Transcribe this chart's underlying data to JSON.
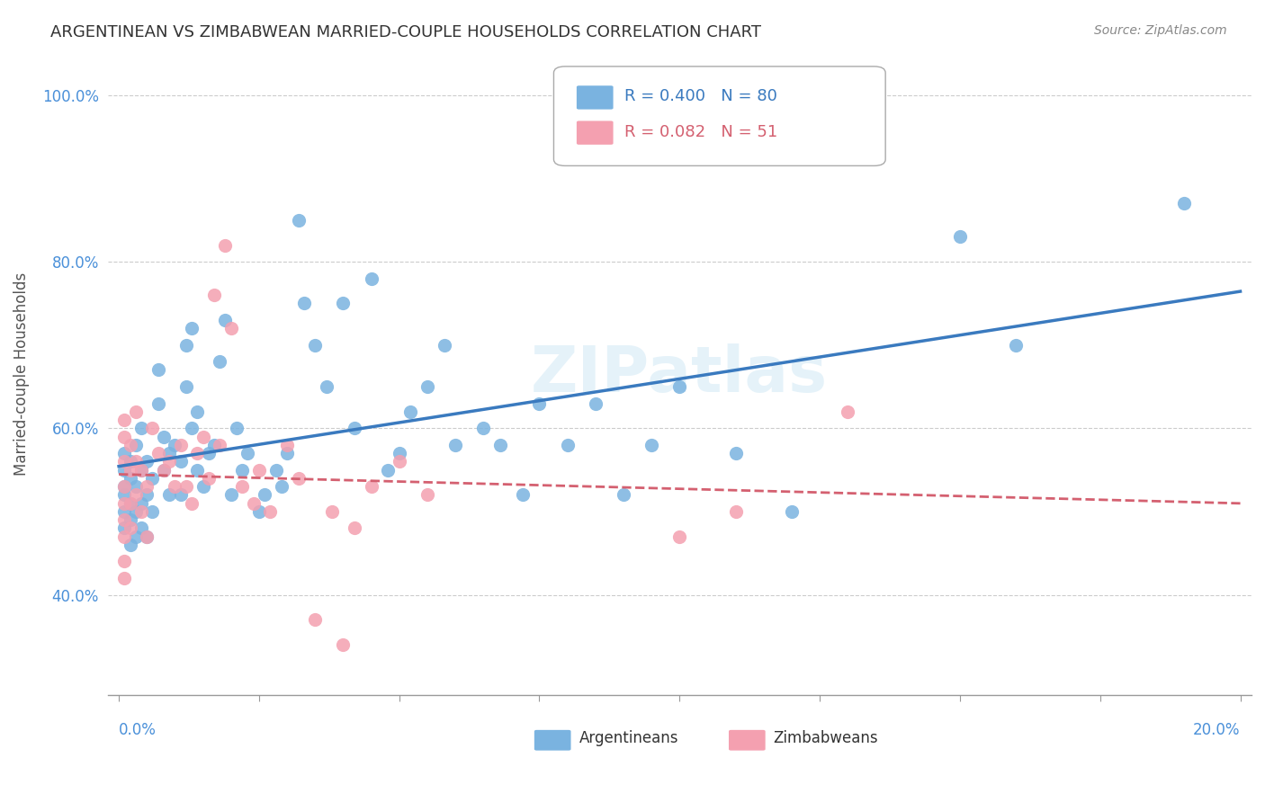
{
  "title": "ARGENTINEAN VS ZIMBABWEAN MARRIED-COUPLE HOUSEHOLDS CORRELATION CHART",
  "source": "Source: ZipAtlas.com",
  "ylabel": "Married-couple Households",
  "yticks": [
    0.4,
    0.6,
    0.8,
    1.0
  ],
  "ytick_labels": [
    "40.0%",
    "60.0%",
    "80.0%",
    "100.0%"
  ],
  "legend_r_blue": "R = 0.400",
  "legend_n_blue": "N = 80",
  "legend_r_pink": "R = 0.082",
  "legend_n_pink": "N = 51",
  "color_blue": "#7ab3e0",
  "color_pink": "#f4a0b0",
  "line_color_blue": "#3a7abf",
  "line_color_pink": "#d46070",
  "watermark": "ZIPatlas",
  "axis_label_color": "#4a90d9",
  "blue_scatter_x": [
    0.001,
    0.001,
    0.001,
    0.001,
    0.001,
    0.001,
    0.002,
    0.002,
    0.002,
    0.002,
    0.002,
    0.003,
    0.003,
    0.003,
    0.003,
    0.004,
    0.004,
    0.004,
    0.004,
    0.005,
    0.005,
    0.005,
    0.006,
    0.006,
    0.007,
    0.007,
    0.008,
    0.008,
    0.009,
    0.009,
    0.01,
    0.011,
    0.011,
    0.012,
    0.012,
    0.013,
    0.013,
    0.014,
    0.014,
    0.015,
    0.016,
    0.017,
    0.018,
    0.019,
    0.02,
    0.021,
    0.022,
    0.023,
    0.025,
    0.026,
    0.028,
    0.029,
    0.03,
    0.032,
    0.033,
    0.035,
    0.037,
    0.04,
    0.042,
    0.045,
    0.048,
    0.05,
    0.052,
    0.055,
    0.058,
    0.06,
    0.065,
    0.068,
    0.072,
    0.075,
    0.08,
    0.085,
    0.09,
    0.095,
    0.1,
    0.11,
    0.12,
    0.15,
    0.16,
    0.19
  ],
  "blue_scatter_y": [
    0.48,
    0.5,
    0.52,
    0.53,
    0.55,
    0.57,
    0.46,
    0.49,
    0.51,
    0.54,
    0.56,
    0.47,
    0.5,
    0.53,
    0.58,
    0.48,
    0.51,
    0.55,
    0.6,
    0.47,
    0.52,
    0.56,
    0.5,
    0.54,
    0.63,
    0.67,
    0.55,
    0.59,
    0.52,
    0.57,
    0.58,
    0.52,
    0.56,
    0.65,
    0.7,
    0.6,
    0.72,
    0.55,
    0.62,
    0.53,
    0.57,
    0.58,
    0.68,
    0.73,
    0.52,
    0.6,
    0.55,
    0.57,
    0.5,
    0.52,
    0.55,
    0.53,
    0.57,
    0.85,
    0.75,
    0.7,
    0.65,
    0.75,
    0.6,
    0.78,
    0.55,
    0.57,
    0.62,
    0.65,
    0.7,
    0.58,
    0.6,
    0.58,
    0.52,
    0.63,
    0.58,
    0.63,
    0.52,
    0.58,
    0.65,
    0.57,
    0.5,
    0.83,
    0.7,
    0.87
  ],
  "pink_scatter_x": [
    0.001,
    0.001,
    0.001,
    0.001,
    0.001,
    0.001,
    0.001,
    0.001,
    0.001,
    0.002,
    0.002,
    0.002,
    0.002,
    0.003,
    0.003,
    0.003,
    0.004,
    0.004,
    0.005,
    0.005,
    0.006,
    0.007,
    0.008,
    0.009,
    0.01,
    0.011,
    0.012,
    0.013,
    0.014,
    0.015,
    0.016,
    0.017,
    0.018,
    0.019,
    0.02,
    0.022,
    0.024,
    0.025,
    0.027,
    0.03,
    0.032,
    0.035,
    0.038,
    0.04,
    0.042,
    0.045,
    0.05,
    0.055,
    0.1,
    0.11,
    0.13
  ],
  "pink_scatter_y": [
    0.42,
    0.44,
    0.47,
    0.49,
    0.51,
    0.53,
    0.56,
    0.59,
    0.61,
    0.48,
    0.51,
    0.55,
    0.58,
    0.52,
    0.56,
    0.62,
    0.5,
    0.55,
    0.47,
    0.53,
    0.6,
    0.57,
    0.55,
    0.56,
    0.53,
    0.58,
    0.53,
    0.51,
    0.57,
    0.59,
    0.54,
    0.76,
    0.58,
    0.82,
    0.72,
    0.53,
    0.51,
    0.55,
    0.5,
    0.58,
    0.54,
    0.37,
    0.5,
    0.34,
    0.48,
    0.53,
    0.56,
    0.52,
    0.47,
    0.5,
    0.62
  ]
}
